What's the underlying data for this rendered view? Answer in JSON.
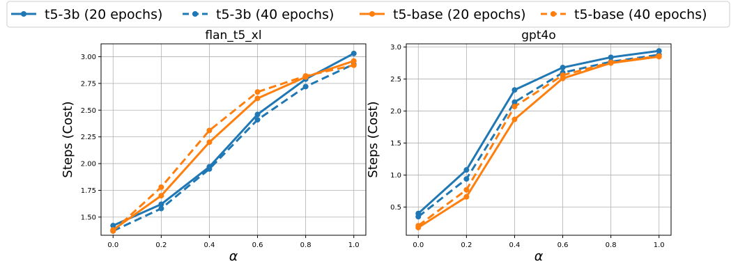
{
  "legend": {
    "placement": "top-center",
    "entries": [
      {
        "label": "t5-3b (20 epochs)",
        "color": "#1f77b4",
        "dash": false
      },
      {
        "label": "t5-3b (40 epochs)",
        "color": "#1f77b4",
        "dash": true
      },
      {
        "label": "t5-base (20 epochs)",
        "color": "#ff7f0e",
        "dash": false
      },
      {
        "label": "t5-base (40 epochs)",
        "color": "#ff7f0e",
        "dash": true
      }
    ]
  },
  "chart_data": [
    {
      "type": "line",
      "title": "flan_t5_xl",
      "xlabel": "α",
      "ylabel": "Steps (Cost)",
      "xlim": [
        -0.05,
        1.05
      ],
      "ylim": [
        1.33,
        3.12
      ],
      "xticks": [
        "0.0",
        "0.2",
        "0.4",
        "0.6",
        "0.8",
        "1.0"
      ],
      "yticks": [
        "1.50",
        "1.75",
        "2.00",
        "2.25",
        "2.50",
        "2.75",
        "3.00"
      ],
      "grid": true,
      "x": [
        0.0,
        0.2,
        0.4,
        0.6,
        0.8,
        1.0
      ],
      "series": [
        {
          "name": "t5-3b (20 epochs)",
          "color": "#1f77b4",
          "dash": false,
          "values": [
            1.42,
            1.62,
            1.97,
            2.46,
            2.79,
            3.03
          ]
        },
        {
          "name": "t5-3b (40 epochs)",
          "color": "#1f77b4",
          "dash": true,
          "values": [
            1.37,
            1.58,
            1.95,
            2.41,
            2.72,
            2.93
          ]
        },
        {
          "name": "t5-base (20 epochs)",
          "color": "#ff7f0e",
          "dash": false,
          "values": [
            1.38,
            1.7,
            2.2,
            2.61,
            2.81,
            2.96
          ]
        },
        {
          "name": "t5-base (40 epochs)",
          "color": "#ff7f0e",
          "dash": true,
          "values": [
            1.37,
            1.78,
            2.31,
            2.67,
            2.82,
            2.92
          ]
        }
      ]
    },
    {
      "type": "line",
      "title": "gpt4o",
      "xlabel": "α",
      "ylabel": "Steps (Cost)",
      "xlim": [
        -0.05,
        1.05
      ],
      "ylim": [
        0.06,
        3.05
      ],
      "xticks": [
        "0.0",
        "0.2",
        "0.4",
        "0.6",
        "0.8",
        "1.0"
      ],
      "yticks": [
        "0.5",
        "1.0",
        "1.5",
        "2.0",
        "2.5",
        "3.0"
      ],
      "grid": true,
      "x": [
        0.0,
        0.2,
        0.4,
        0.6,
        0.8,
        1.0
      ],
      "series": [
        {
          "name": "t5-3b (20 epochs)",
          "color": "#1f77b4",
          "dash": false,
          "values": [
            0.4,
            1.08,
            2.33,
            2.68,
            2.84,
            2.94
          ]
        },
        {
          "name": "t5-3b (40 epochs)",
          "color": "#1f77b4",
          "dash": true,
          "values": [
            0.35,
            0.94,
            2.14,
            2.6,
            2.77,
            2.88
          ]
        },
        {
          "name": "t5-base (20 epochs)",
          "color": "#ff7f0e",
          "dash": false,
          "values": [
            0.18,
            0.66,
            1.87,
            2.51,
            2.75,
            2.85
          ]
        },
        {
          "name": "t5-base (40 epochs)",
          "color": "#ff7f0e",
          "dash": true,
          "values": [
            0.21,
            0.77,
            2.07,
            2.56,
            2.76,
            2.86
          ]
        }
      ]
    }
  ]
}
